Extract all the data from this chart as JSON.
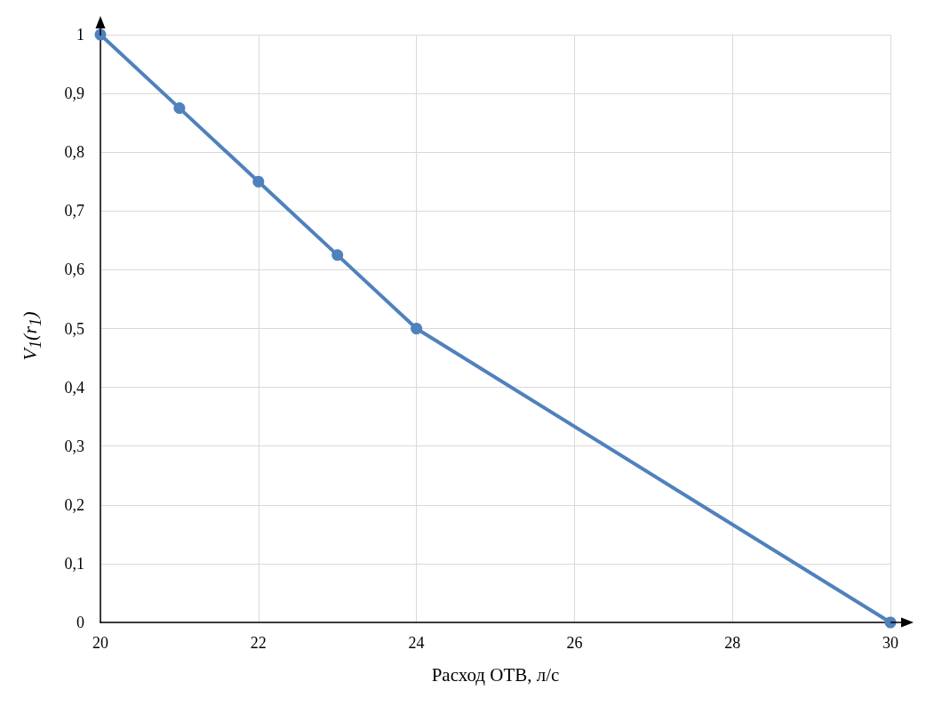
{
  "chart_data": {
    "type": "line",
    "xlabel": "Расход ОТВ, л/с",
    "ylabel": "V$_{1}$(r$_{1}$)",
    "x": [
      20,
      21,
      22,
      23,
      24,
      30
    ],
    "series": [
      {
        "color": "#4f81bd",
        "values": [
          1,
          0.875,
          0.75,
          0.625,
          0.5,
          0
        ]
      }
    ],
    "xlim": [
      20,
      30
    ],
    "xticks": [
      20,
      22,
      24,
      26,
      28,
      30
    ],
    "ylim": [
      0,
      1
    ],
    "yticks": [
      0,
      {
        "value": 0.1,
        "label": "0,1"
      },
      {
        "value": 0.2,
        "label": "0,2"
      },
      {
        "value": 0.3,
        "label": "0,3"
      },
      {
        "value": 0.4,
        "label": "0,4"
      },
      {
        "value": 0.5,
        "label": "0,5"
      },
      {
        "value": 0.6,
        "label": "0,6"
      },
      {
        "value": 0.7,
        "label": "0,7"
      },
      {
        "value": 0.8,
        "label": "0,8"
      },
      {
        "value": 0.9,
        "label": "0,9"
      },
      1
    ],
    "grid": true,
    "marker": "circle",
    "line_style": "solid"
  }
}
